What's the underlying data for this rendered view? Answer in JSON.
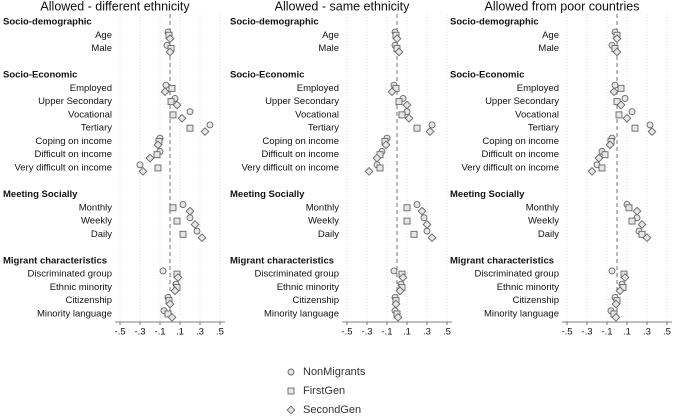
{
  "chart_data": [
    {
      "type": "dot",
      "title": "Allowed - different ethnicity",
      "categories": [
        "Socio-demographic",
        "Age",
        "Male",
        null,
        "Socio-Economic",
        "Employed",
        "Upper Secondary",
        "Vocational",
        "Tertiary",
        "Coping on income",
        "Difficult on income",
        "Very difficult on income",
        null,
        "Meeting Socially",
        "Monthly",
        "Weekly",
        "Daily",
        null,
        "Migrant characteristics",
        "Discriminated group",
        "Ethnic minority",
        "Citizenship",
        "Minority language"
      ],
      "series": [
        {
          "name": "NonMigrants",
          "marker": "circle",
          "color": "#666666",
          "values": [
            null,
            -0.02,
            -0.03,
            null,
            null,
            -0.04,
            0.05,
            0.2,
            0.4,
            -0.1,
            -0.1,
            -0.3,
            null,
            null,
            0.13,
            0.2,
            0.27,
            null,
            null,
            -0.07,
            0.06,
            -0.02,
            -0.06
          ]
        },
        {
          "name": "FirstGen",
          "marker": "square",
          "color": "#666666",
          "values": [
            null,
            -0.01,
            0.01,
            null,
            null,
            0.02,
            0.01,
            0.03,
            0.2,
            -0.11,
            -0.13,
            -0.12,
            null,
            null,
            0.03,
            0.07,
            0.13,
            null,
            null,
            0.07,
            0.07,
            -0.01,
            -0.02
          ]
        },
        {
          "name": "SecondGen",
          "marker": "diamond",
          "color": "#666666",
          "values": [
            null,
            0.0,
            0.0,
            null,
            null,
            -0.05,
            0.07,
            0.12,
            0.35,
            -0.12,
            -0.2,
            -0.27,
            null,
            null,
            0.2,
            0.25,
            0.32,
            null,
            null,
            0.08,
            0.05,
            0.0,
            0.02
          ]
        }
      ],
      "xlim": [
        -0.55,
        0.55
      ],
      "xticks": [
        {
          "value": -0.5,
          "label": "-.5"
        },
        {
          "value": -0.3,
          "label": "-.3"
        },
        {
          "value": -0.1,
          "label": "-.1"
        },
        {
          "value": 0.1,
          "label": ".1"
        },
        {
          "value": 0.3,
          "label": ".3"
        },
        {
          "value": 0.5,
          "label": ".5"
        }
      ],
      "grid": true
    },
    {
      "type": "dot",
      "title": "Allowed - same ethnicity",
      "categories": [
        "Socio-demographic",
        "Age",
        "Male",
        null,
        "Socio-Economic",
        "Employed",
        "Upper Secondary",
        "Vocational",
        "Tertiary",
        "Coping on income",
        "Difficult on income",
        "Very difficult on income",
        null,
        "Meeting Socially",
        "Monthly",
        "Weekly",
        "Daily",
        null,
        "Migrant characteristics",
        "Discriminated group",
        "Ethnic minority",
        "Citizenship",
        "Minority language"
      ],
      "series": [
        {
          "marker": "circle",
          "color": "#666666",
          "values": [
            null,
            -0.02,
            -0.02,
            null,
            null,
            -0.03,
            0.06,
            0.1,
            0.35,
            -0.1,
            -0.15,
            -0.2,
            null,
            null,
            0.2,
            0.27,
            0.3,
            null,
            null,
            -0.03,
            0.04,
            -0.02,
            -0.02
          ]
        },
        {
          "marker": "square",
          "color": "#666666",
          "values": [
            null,
            -0.01,
            0.0,
            null,
            null,
            -0.01,
            0.02,
            0.05,
            0.2,
            -0.12,
            -0.17,
            -0.17,
            null,
            null,
            0.1,
            0.1,
            0.17,
            null,
            null,
            0.05,
            0.05,
            -0.01,
            0.0
          ]
        },
        {
          "marker": "diamond",
          "color": "#666666",
          "values": [
            null,
            0.0,
            0.02,
            null,
            null,
            -0.05,
            0.1,
            0.12,
            0.33,
            -0.11,
            -0.2,
            -0.28,
            null,
            null,
            0.25,
            0.3,
            0.35,
            null,
            null,
            0.06,
            0.03,
            -0.01,
            0.01
          ]
        }
      ],
      "xlim": [
        -0.55,
        0.55
      ],
      "xticks": [
        {
          "value": -0.5,
          "label": "-.5"
        },
        {
          "value": -0.3,
          "label": "-.3"
        },
        {
          "value": -0.1,
          "label": "-.1"
        },
        {
          "value": 0.1,
          "label": ".1"
        },
        {
          "value": 0.3,
          "label": ".3"
        },
        {
          "value": 0.5,
          "label": ".5"
        }
      ],
      "grid": true
    },
    {
      "type": "dot",
      "title": "Allowed from poor countries",
      "categories": [
        "Socio-demographic",
        "Age",
        "Male",
        null,
        "Socio-Economic",
        "Employed",
        "Upper Secondary",
        "Vocational",
        "Tertiary",
        "Coping on income",
        "Difficult on income",
        "Very difficult on income",
        null,
        "Meeting Socially",
        "Monthly",
        "Weekly",
        "Daily",
        null,
        "Migrant characteristics",
        "Discriminated group",
        "Ethnic minority",
        "Citizenship",
        "Minority language"
      ],
      "series": [
        {
          "marker": "circle",
          "color": "#666666",
          "values": [
            null,
            -0.02,
            -0.05,
            null,
            null,
            -0.02,
            0.08,
            0.15,
            0.33,
            -0.05,
            -0.15,
            -0.2,
            null,
            null,
            0.1,
            0.2,
            0.22,
            null,
            null,
            -0.05,
            0.05,
            -0.02,
            -0.06
          ]
        },
        {
          "marker": "square",
          "color": "#666666",
          "values": [
            null,
            0.0,
            -0.02,
            null,
            null,
            0.04,
            0.0,
            0.02,
            0.18,
            -0.06,
            -0.12,
            -0.15,
            null,
            null,
            0.12,
            0.15,
            0.25,
            null,
            null,
            0.07,
            0.06,
            0.0,
            -0.03
          ]
        },
        {
          "marker": "diamond",
          "color": "#666666",
          "values": [
            null,
            0.0,
            0.0,
            null,
            null,
            -0.03,
            0.04,
            0.1,
            0.35,
            -0.07,
            -0.18,
            -0.25,
            null,
            null,
            0.2,
            0.25,
            0.3,
            null,
            null,
            0.08,
            0.03,
            -0.01,
            -0.01
          ]
        }
      ],
      "xlim": [
        -0.55,
        0.55
      ],
      "xticks": [
        {
          "value": -0.5,
          "label": "-.5"
        },
        {
          "value": -0.3,
          "label": "-.3"
        },
        {
          "value": -0.1,
          "label": "-.1"
        },
        {
          "value": 0.1,
          "label": ".1"
        },
        {
          "value": 0.3,
          "label": ".3"
        },
        {
          "value": 0.5,
          "label": ".5"
        }
      ],
      "grid": true
    }
  ]
}
